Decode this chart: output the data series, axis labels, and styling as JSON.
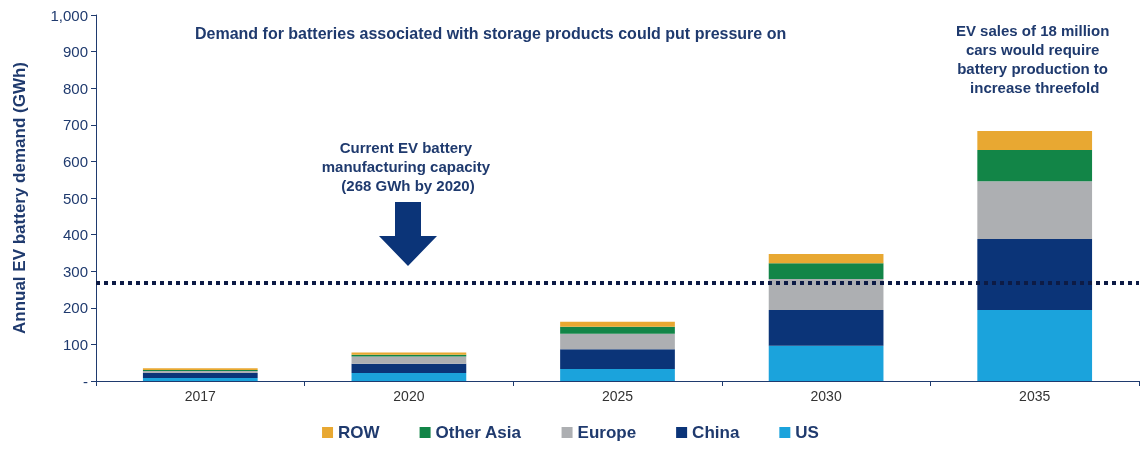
{
  "chart_data": {
    "type": "bar",
    "stacked": true,
    "title": "Demand for batteries associated with storage products could put pressure on",
    "ylabel": "Annual EV battery demand (GWh)",
    "categories": [
      "2017",
      "2020",
      "2025",
      "2030",
      "2035"
    ],
    "series": [
      {
        "name": "US",
        "color": "#1ba3dc",
        "values": [
          8,
          22,
          33,
          96,
          194
        ]
      },
      {
        "name": "China",
        "color": "#0b3478",
        "values": [
          14,
          25,
          54,
          98,
          194
        ]
      },
      {
        "name": "Europe",
        "color": "#adafb2",
        "values": [
          5,
          20,
          42,
          85,
          158
        ]
      },
      {
        "name": "Other Asia",
        "color": "#128547",
        "values": [
          3,
          5,
          19,
          43,
          85
        ]
      },
      {
        "name": "ROW",
        "color": "#e8a832",
        "values": [
          5,
          6,
          14,
          25,
          52
        ]
      }
    ],
    "ylim": [
      0,
      1000
    ],
    "yticks": [
      {
        "value": 0,
        "label": "-"
      },
      100,
      200,
      300,
      400,
      500,
      600,
      700,
      800,
      900,
      {
        "value": 1000,
        "label": "1,000"
      }
    ],
    "ref_lines": [
      {
        "axis": "y",
        "value": 268,
        "color": "#0d1b45",
        "line_style": "dotted"
      }
    ],
    "annotations": [
      "Current EV battery manufacturing capacity (268 GWh by 2020)",
      {
        "text": "EV sales of 18 million cars would require battery production to increase threefold",
        "x": "2035",
        "y": 683
      }
    ],
    "grid": false,
    "legend": "bottom"
  }
}
